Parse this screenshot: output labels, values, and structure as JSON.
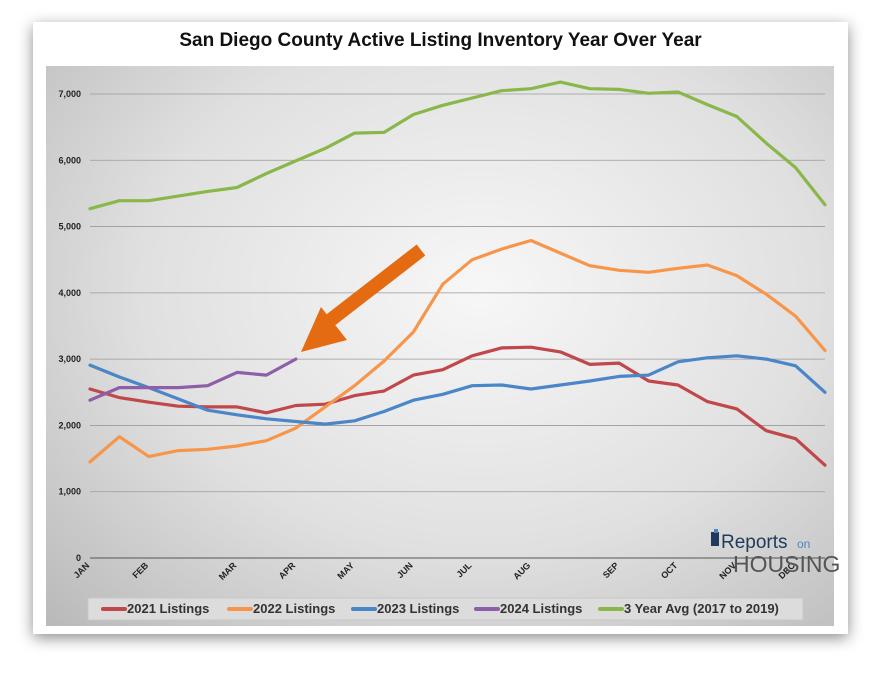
{
  "chart_data": {
    "type": "line",
    "title": "San Diego County Active Listing Inventory Year Over Year",
    "x_tick_labels": [
      "JAN",
      "FEB",
      "MAR",
      "APR",
      "MAY",
      "JUN",
      "JUL",
      "AUG",
      "SEP",
      "OCT",
      "NOV",
      "DEC"
    ],
    "x_tick_index": [
      0,
      2,
      5,
      7,
      9,
      11,
      13,
      15,
      18,
      20,
      22,
      24
    ],
    "x_points": 26,
    "ylim": [
      0,
      7500
    ],
    "y_ticks": [
      0,
      1000,
      2000,
      3000,
      4000,
      5000,
      6000,
      7000
    ],
    "y_tick_labels": [
      "0",
      "1,000",
      "2,000",
      "3,000",
      "4,000",
      "5,000",
      "6,000",
      "7,000"
    ],
    "grid": true,
    "legend_position": "bottom",
    "series": [
      {
        "name": "2021 Listings",
        "color": "#c0474a",
        "values": [
          2550,
          2420,
          2350,
          2290,
          2280,
          2280,
          2190,
          2300,
          2320,
          2450,
          2520,
          2760,
          2840,
          3050,
          3170,
          3180,
          3110,
          2920,
          2940,
          2670,
          2610,
          2360,
          2250,
          1920,
          1800,
          1400
        ]
      },
      {
        "name": "2022 Listings",
        "color": "#f7964a",
        "values": [
          1450,
          1830,
          1530,
          1620,
          1640,
          1690,
          1770,
          1960,
          2280,
          2600,
          2970,
          3410,
          4130,
          4500,
          4660,
          4790,
          4600,
          4410,
          4340,
          4310,
          4370,
          4420,
          4260,
          3980,
          3650,
          3130
        ]
      },
      {
        "name": "2023 Listings",
        "color": "#4a86c8",
        "values": [
          2910,
          2730,
          2570,
          2400,
          2230,
          2160,
          2100,
          2060,
          2020,
          2070,
          2210,
          2380,
          2470,
          2600,
          2610,
          2550,
          2610,
          2670,
          2740,
          2760,
          2960,
          3020,
          3050,
          3000,
          2900,
          2500
        ]
      },
      {
        "name": "2024 Listings",
        "color": "#8e5ea8",
        "values": [
          2380,
          2570,
          2570,
          2570,
          2600,
          2800,
          2760,
          3000
        ]
      },
      {
        "name": "3 Year Avg (2017 to 2019)",
        "color": "#8ab74a",
        "values": [
          5270,
          5390,
          5390,
          5460,
          5530,
          5590,
          5800,
          5990,
          6180,
          6410,
          6420,
          6690,
          6830,
          6940,
          7050,
          7080,
          7180,
          7080,
          7070,
          7010,
          7030,
          6840,
          6660,
          6260,
          5890,
          5330
        ]
      }
    ]
  },
  "logo": {
    "top": "Reports",
    "top_small": "on",
    "bottom": "HOUSING"
  },
  "colors": {
    "arrow": "#e56b12",
    "logo_dark": "#1f3a5a",
    "logo_accent": "#4a86c8"
  }
}
